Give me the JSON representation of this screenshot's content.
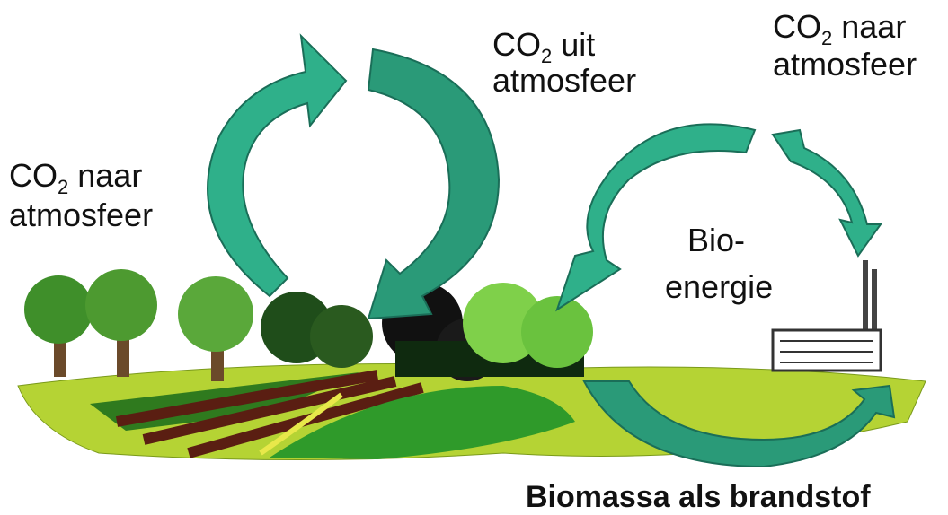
{
  "labels": [
    {
      "main": "CO",
      "subscript": "2",
      "rest": "naar",
      "line2": "atmosfeer"
    },
    {
      "main": "CO",
      "subscript": "2",
      "rest": "uit",
      "line2": "atmosfeer"
    },
    {
      "main": "CO",
      "subscript": "2",
      "rest": "naar",
      "line2": "atmosfeer"
    }
  ],
  "bioenergy": {
    "line1": "Bio-",
    "line2": "energie"
  },
  "caption": "Biomassa als brandstof"
}
